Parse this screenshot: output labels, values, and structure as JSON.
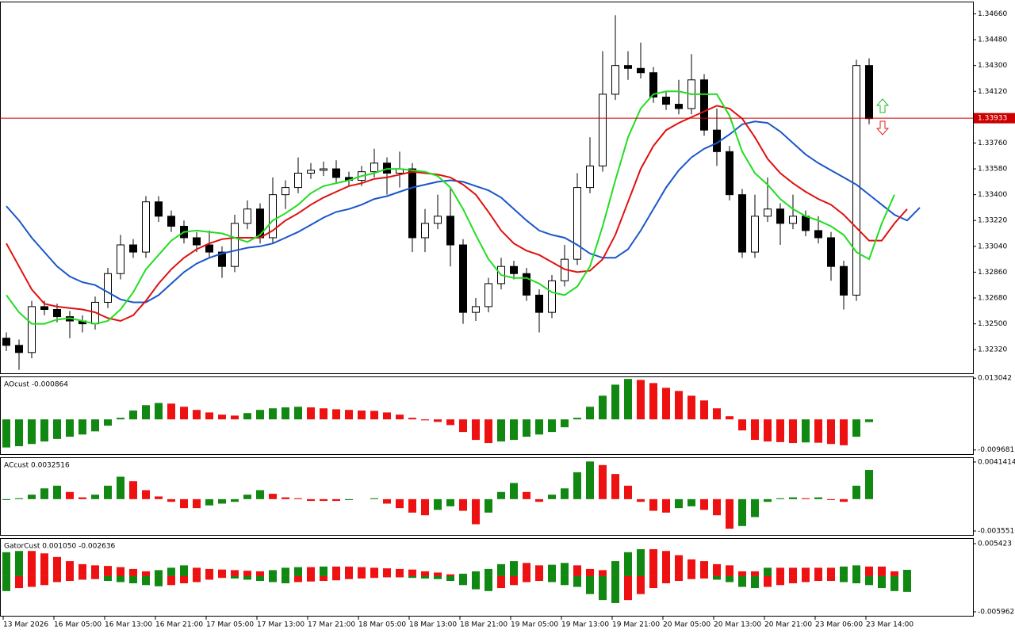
{
  "time_axis": [
    "13 Mar 2026",
    "16 Mar 05:00",
    "16 Mar 13:00",
    "16 Mar 21:00",
    "17 Mar 05:00",
    "17 Mar 13:00",
    "17 Mar 21:00",
    "18 Mar 05:00",
    "18 Mar 13:00",
    "18 Mar 21:00",
    "19 Mar 05:00",
    "19 Mar 13:00",
    "19 Mar 21:00",
    "20 Mar 05:00",
    "20 Mar 13:00",
    "20 Mar 21:00",
    "23 Mar 06:00",
    "23 Mar 14:00"
  ],
  "chart_data": [
    {
      "type": "candlestick",
      "open": [
        1.324,
        1.3235,
        1.323,
        1.3262,
        1.326,
        1.3255,
        1.3252,
        1.325,
        1.3265,
        1.3285,
        1.3305,
        1.33,
        1.3335,
        1.3325,
        1.3318,
        1.331,
        1.3305,
        1.33,
        1.329,
        1.332,
        1.333,
        1.331,
        1.334,
        1.3345,
        1.3355,
        1.3357,
        1.3358,
        1.3352,
        1.335,
        1.3356,
        1.3362,
        1.3355,
        1.3358,
        1.331,
        1.332,
        1.3325,
        1.3305,
        1.3258,
        1.3262,
        1.3278,
        1.329,
        1.3285,
        1.327,
        1.3258,
        1.328,
        1.3295,
        1.3345,
        1.336,
        1.341,
        1.343,
        1.3428,
        1.3425,
        1.3408,
        1.3403,
        1.34,
        1.342,
        1.3385,
        1.337,
        1.334,
        1.33,
        1.3325,
        1.333,
        1.332,
        1.3325,
        1.3315,
        1.331,
        1.329,
        1.327,
        1.343
      ],
      "high": [
        1.3244,
        1.3239,
        1.3266,
        1.3266,
        1.3264,
        1.3259,
        1.3256,
        1.3269,
        1.3289,
        1.3312,
        1.3309,
        1.3339,
        1.3339,
        1.3329,
        1.3322,
        1.3314,
        1.3315,
        1.3304,
        1.3326,
        1.3336,
        1.3334,
        1.3352,
        1.335,
        1.3366,
        1.3362,
        1.3363,
        1.3364,
        1.3356,
        1.336,
        1.3372,
        1.3366,
        1.337,
        1.3362,
        1.333,
        1.334,
        1.3345,
        1.3309,
        1.3268,
        1.3282,
        1.3296,
        1.3294,
        1.3289,
        1.3274,
        1.3284,
        1.3305,
        1.3355,
        1.338,
        1.344,
        1.3465,
        1.344,
        1.3446,
        1.3429,
        1.3412,
        1.342,
        1.3438,
        1.3424,
        1.34,
        1.3374,
        1.3344,
        1.334,
        1.3352,
        1.3334,
        1.334,
        1.3329,
        1.3325,
        1.3314,
        1.3294,
        1.3434,
        1.3435
      ],
      "low": [
        1.3231,
        1.3218,
        1.3226,
        1.3256,
        1.3251,
        1.324,
        1.3244,
        1.3246,
        1.3261,
        1.3281,
        1.3296,
        1.3296,
        1.3321,
        1.3314,
        1.3306,
        1.33,
        1.3296,
        1.3282,
        1.3286,
        1.3316,
        1.3306,
        1.3306,
        1.333,
        1.3341,
        1.3351,
        1.3353,
        1.3348,
        1.3346,
        1.3346,
        1.3352,
        1.334,
        1.3345,
        1.33,
        1.33,
        1.3316,
        1.329,
        1.325,
        1.3252,
        1.3258,
        1.3274,
        1.3281,
        1.3266,
        1.3244,
        1.3254,
        1.3276,
        1.3291,
        1.3341,
        1.3356,
        1.3406,
        1.342,
        1.3421,
        1.3404,
        1.3399,
        1.3396,
        1.3396,
        1.3381,
        1.336,
        1.3336,
        1.3296,
        1.3296,
        1.3321,
        1.3305,
        1.3316,
        1.3311,
        1.3306,
        1.328,
        1.326,
        1.3266,
        1.3389
      ],
      "close": [
        1.3235,
        1.323,
        1.3262,
        1.326,
        1.3255,
        1.3252,
        1.325,
        1.3265,
        1.3285,
        1.3305,
        1.33,
        1.3335,
        1.3325,
        1.3318,
        1.331,
        1.3305,
        1.33,
        1.329,
        1.332,
        1.333,
        1.331,
        1.334,
        1.3345,
        1.3355,
        1.3357,
        1.3358,
        1.3352,
        1.335,
        1.3356,
        1.3362,
        1.3355,
        1.3358,
        1.331,
        1.332,
        1.3325,
        1.3305,
        1.3258,
        1.3262,
        1.3278,
        1.329,
        1.3285,
        1.327,
        1.3258,
        1.328,
        1.3295,
        1.3345,
        1.336,
        1.341,
        1.343,
        1.3428,
        1.3425,
        1.3408,
        1.3403,
        1.34,
        1.342,
        1.3385,
        1.337,
        1.334,
        1.33,
        1.3325,
        1.333,
        1.332,
        1.3325,
        1.3315,
        1.331,
        1.329,
        1.327,
        1.343,
        1.3393
      ],
      "series": [
        {
          "color": "#1a56c8",
          "values": [
            1.3332,
            1.3322,
            1.331,
            1.33,
            1.329,
            1.3283,
            1.3279,
            1.3277,
            1.3272,
            1.3267,
            1.3265,
            1.3265,
            1.327,
            1.3278,
            1.3286,
            1.3292,
            1.3296,
            1.3299,
            1.3301,
            1.3303,
            1.3304,
            1.3306,
            1.331,
            1.3314,
            1.3319,
            1.3324,
            1.3328,
            1.333,
            1.3333,
            1.3337,
            1.3339,
            1.3342,
            1.3345,
            1.3347,
            1.3349,
            1.335,
            1.3349,
            1.3346,
            1.3343,
            1.3338,
            1.333,
            1.3322,
            1.3315,
            1.3312,
            1.331,
            1.3305,
            1.3299,
            1.3296,
            1.3296,
            1.3302,
            1.3315,
            1.333,
            1.3345,
            1.3357,
            1.3366,
            1.3372,
            1.3376,
            1.3382,
            1.3389,
            1.3391,
            1.339,
            1.3384,
            1.3376,
            1.3368,
            1.3362,
            1.3357,
            1.3352,
            1.3347,
            1.334,
            1.3333,
            1.3326,
            1.3322,
            1.3331
          ]
        },
        {
          "color": "#e01010",
          "values": [
            1.3306,
            1.329,
            1.3274,
            1.3264,
            1.3262,
            1.3261,
            1.326,
            1.3258,
            1.3254,
            1.3252,
            1.3256,
            1.3266,
            1.3278,
            1.3288,
            1.3296,
            1.3302,
            1.3306,
            1.3309,
            1.331,
            1.331,
            1.331,
            1.3315,
            1.3322,
            1.3327,
            1.3333,
            1.3338,
            1.3342,
            1.3346,
            1.3348,
            1.3351,
            1.3352,
            1.3354,
            1.3356,
            1.3355,
            1.3354,
            1.3352,
            1.3347,
            1.334,
            1.3328,
            1.3315,
            1.3306,
            1.3301,
            1.3298,
            1.3293,
            1.3288,
            1.3286,
            1.3287,
            1.3295,
            1.3312,
            1.3335,
            1.3358,
            1.3374,
            1.3385,
            1.339,
            1.3394,
            1.3398,
            1.3402,
            1.34,
            1.3393,
            1.338,
            1.3365,
            1.3355,
            1.3348,
            1.3342,
            1.3337,
            1.3333,
            1.3326,
            1.3317,
            1.3308,
            1.3308,
            1.332,
            1.333,
            null
          ]
        },
        {
          "color": "#22dd22",
          "values": [
            1.327,
            1.3258,
            1.325,
            1.325,
            1.3253,
            1.3254,
            1.3252,
            1.325,
            1.3252,
            1.326,
            1.3272,
            1.3288,
            1.3298,
            1.3308,
            1.3314,
            1.3315,
            1.3314,
            1.3313,
            1.331,
            1.3307,
            1.3312,
            1.3322,
            1.3327,
            1.3333,
            1.3341,
            1.3346,
            1.3348,
            1.335,
            1.3353,
            1.3355,
            1.3358,
            1.3358,
            1.3357,
            1.3356,
            1.3353,
            1.3345,
            1.333,
            1.3312,
            1.3295,
            1.3284,
            1.3282,
            1.3282,
            1.3278,
            1.3272,
            1.327,
            1.3276,
            1.329,
            1.3318,
            1.335,
            1.338,
            1.34,
            1.341,
            1.3412,
            1.3412,
            1.341,
            1.341,
            1.341,
            1.3395,
            1.337,
            1.3355,
            1.3347,
            1.3337,
            1.333,
            1.3325,
            1.3322,
            1.3318,
            1.3312,
            1.33,
            1.3295,
            1.332,
            1.334,
            null,
            null
          ]
        }
      ],
      "ylim": [
        1.3215,
        1.3474
      ],
      "yticks": [
        {
          "value": 1.3466,
          "label": "1.34660"
        },
        {
          "value": 1.3448,
          "label": "1.34480"
        },
        {
          "value": 1.343,
          "label": "1.34300"
        },
        {
          "value": 1.3412,
          "label": "1.34120"
        },
        {
          "value": 1.3376,
          "label": "1.33760"
        },
        {
          "value": 1.3358,
          "label": "1.33580"
        },
        {
          "value": 1.334,
          "label": "1.33400"
        },
        {
          "value": 1.3322,
          "label": "1.33220"
        },
        {
          "value": 1.3304,
          "label": "1.33040"
        },
        {
          "value": 1.3286,
          "label": "1.32860"
        },
        {
          "value": 1.3268,
          "label": "1.32680"
        },
        {
          "value": 1.325,
          "label": "1.32500"
        },
        {
          "value": 1.3232,
          "label": "1.32320"
        }
      ],
      "current_price": {
        "value": 1.33933,
        "label": "1.33933"
      },
      "current_color": "#cc0000"
    },
    {
      "type": "bar",
      "title": "AOcust -0.000864",
      "up_color": "#118811",
      "down_color": "#ee1111",
      "values": [
        -0.0089,
        -0.0085,
        -0.0078,
        -0.007,
        -0.0062,
        -0.0055,
        -0.0048,
        -0.0038,
        -0.002,
        0.0005,
        0.0028,
        0.0045,
        0.0052,
        0.005,
        0.004,
        0.003,
        0.0022,
        0.0015,
        0.0012,
        0.002,
        0.003,
        0.0035,
        0.0038,
        0.004,
        0.0038,
        0.0035,
        0.0032,
        0.003,
        0.0028,
        0.0027,
        0.0022,
        0.0015,
        0.0005,
        -0.0003,
        -0.0008,
        -0.0018,
        -0.004,
        -0.0065,
        -0.0075,
        -0.007,
        -0.0065,
        -0.0055,
        -0.0048,
        -0.004,
        -0.0025,
        0.0005,
        0.004,
        0.0075,
        0.011,
        0.0128,
        0.0125,
        0.0115,
        0.01,
        0.009,
        0.0075,
        0.006,
        0.0035,
        0.001,
        -0.0035,
        -0.0065,
        -0.007,
        -0.0072,
        -0.0075,
        -0.0073,
        -0.0074,
        -0.0078,
        -0.0082,
        -0.0055,
        -0.000864
      ],
      "ylim": [
        -0.01125,
        0.01335
      ],
      "yticks": [
        0.013042,
        -0.009681
      ]
    },
    {
      "type": "bar",
      "title": "ACcust 0.0032516",
      "up_color": "#118811",
      "down_color": "#ee1111",
      "values": [
        -0.0001,
        0.0001,
        0.0005,
        0.0012,
        0.0015,
        0.0008,
        0.0002,
        0.0005,
        0.0015,
        0.0025,
        0.002,
        0.001,
        0.0003,
        -0.0003,
        -0.001,
        -0.001,
        -0.0007,
        -0.0005,
        -0.0003,
        0.0005,
        0.001,
        0.0006,
        0.0002,
        0.0001,
        -0.0002,
        -0.0002,
        -0.0002,
        -0.0001,
        0.0,
        0.0001,
        -0.0005,
        -0.001,
        -0.0015,
        -0.0018,
        -0.0012,
        -0.0008,
        -0.0013,
        -0.0028,
        -0.0015,
        0.0008,
        0.0018,
        0.0008,
        -0.0003,
        0.0005,
        0.0012,
        0.003,
        0.0042,
        0.0038,
        0.0028,
        0.0015,
        -0.0003,
        -0.0013,
        -0.0015,
        -0.001,
        -0.0008,
        -0.0012,
        -0.0018,
        -0.0033,
        -0.003,
        -0.002,
        -0.0003,
        0.0001,
        0.0002,
        0.0001,
        0.0002,
        -0.0001,
        -0.0003,
        0.0015,
        0.0032516
      ],
      "ylim": [
        -0.00408,
        0.00458
      ],
      "yticks": [
        0.0041414,
        -0.0035516
      ]
    },
    {
      "type": "gator",
      "title": "GatorCust 0.001050 -0.002636",
      "up_color": "#118811",
      "down_color": "#ee1111",
      "upper": [
        0.004,
        0.0042,
        0.0042,
        0.0038,
        0.0032,
        0.0025,
        0.002,
        0.0018,
        0.0017,
        0.0015,
        0.0012,
        0.0008,
        0.001,
        0.0014,
        0.0018,
        0.0014,
        0.0012,
        0.0011,
        0.001,
        0.0009,
        0.0008,
        0.001,
        0.0014,
        0.0015,
        0.0015,
        0.0016,
        0.0016,
        0.0016,
        0.0015,
        0.0014,
        0.0013,
        0.0012,
        0.0011,
        0.0008,
        0.0006,
        0.0003,
        0.0004,
        0.0008,
        0.0012,
        0.002,
        0.0025,
        0.0022,
        0.0018,
        0.0019,
        0.0022,
        0.0018,
        0.0012,
        0.001,
        0.0025,
        0.004,
        0.0045,
        0.0045,
        0.0042,
        0.0035,
        0.0028,
        0.0025,
        0.002,
        0.0018,
        0.0008,
        0.0008,
        0.0014,
        0.0014,
        0.0014,
        0.0014,
        0.0014,
        0.0014,
        0.0016,
        0.0018,
        0.0016,
        0.0016,
        0.0008,
        0.00105
      ],
      "lower": [
        -0.0025,
        -0.002,
        -0.0018,
        -0.0015,
        -0.001,
        -0.0008,
        -0.0006,
        -0.0005,
        -0.0008,
        -0.001,
        -0.0012,
        -0.0015,
        -0.0017,
        -0.0015,
        -0.0012,
        -0.001,
        -0.0006,
        -0.0003,
        -0.0004,
        -0.0006,
        -0.0008,
        -0.001,
        -0.0012,
        -0.001,
        -0.0009,
        -0.0008,
        -0.0007,
        -0.0005,
        -0.0004,
        -0.0003,
        -0.0002,
        -0.0002,
        -0.0003,
        -0.0004,
        -0.0005,
        -0.0008,
        -0.0015,
        -0.0022,
        -0.0025,
        -0.002,
        -0.0015,
        -0.001,
        -0.0008,
        -0.001,
        -0.0015,
        -0.0018,
        -0.003,
        -0.004,
        -0.0045,
        -0.004,
        -0.003,
        -0.002,
        -0.0012,
        -0.0008,
        -0.0005,
        -0.0004,
        -0.0006,
        -0.001,
        -0.0018,
        -0.002,
        -0.0018,
        -0.0015,
        -0.0012,
        -0.001,
        -0.0008,
        -0.0008,
        -0.001,
        -0.0012,
        -0.0015,
        -0.002,
        -0.0025,
        -0.002636
      ],
      "ylim": [
        -0.00676,
        0.00622
      ],
      "yticks": [
        0.005423,
        -0.005962
      ]
    }
  ]
}
